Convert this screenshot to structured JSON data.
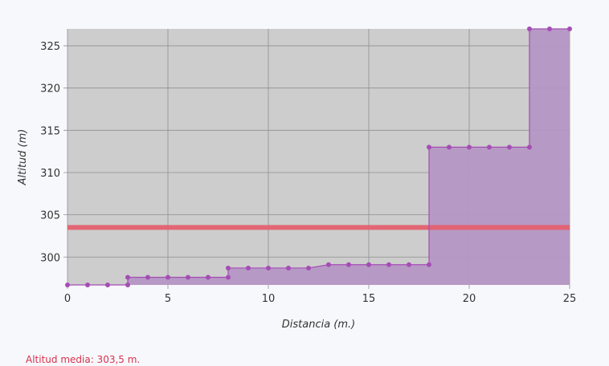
{
  "chart_data": {
    "type": "area",
    "line_shape": "step-after",
    "xlabel": "Distancia (m.)",
    "ylabel": "Altitud (m)",
    "xlim": [
      0,
      25
    ],
    "ylim": [
      296.7,
      327.0
    ],
    "xticks": [
      0,
      5,
      10,
      15,
      20,
      25
    ],
    "yticks": [
      300,
      305,
      310,
      315,
      320,
      325
    ],
    "grid": true,
    "series": [
      {
        "x": [
          0,
          1,
          2,
          3,
          3,
          4,
          5,
          6,
          7,
          8,
          8,
          9,
          10,
          11,
          12,
          13,
          14,
          15,
          16,
          17,
          18,
          18,
          19,
          20,
          21,
          22,
          23,
          23,
          24,
          25
        ],
        "y": [
          296.7,
          296.7,
          296.7,
          296.7,
          297.6,
          297.6,
          297.6,
          297.6,
          297.6,
          297.6,
          298.7,
          298.7,
          298.7,
          298.7,
          298.7,
          299.1,
          299.1,
          299.1,
          299.1,
          299.1,
          299.1,
          313.0,
          313.0,
          313.0,
          313.0,
          313.0,
          313.0,
          327.0,
          327.0,
          327.0
        ],
        "color": "#a54db5",
        "fill": "#b596c4"
      }
    ],
    "reference_line": {
      "y": 303.5,
      "color": "#e4606f"
    },
    "plot_background": "#cdcdcd"
  },
  "footer": {
    "average_label": "Altitud media: 303,5 m."
  }
}
